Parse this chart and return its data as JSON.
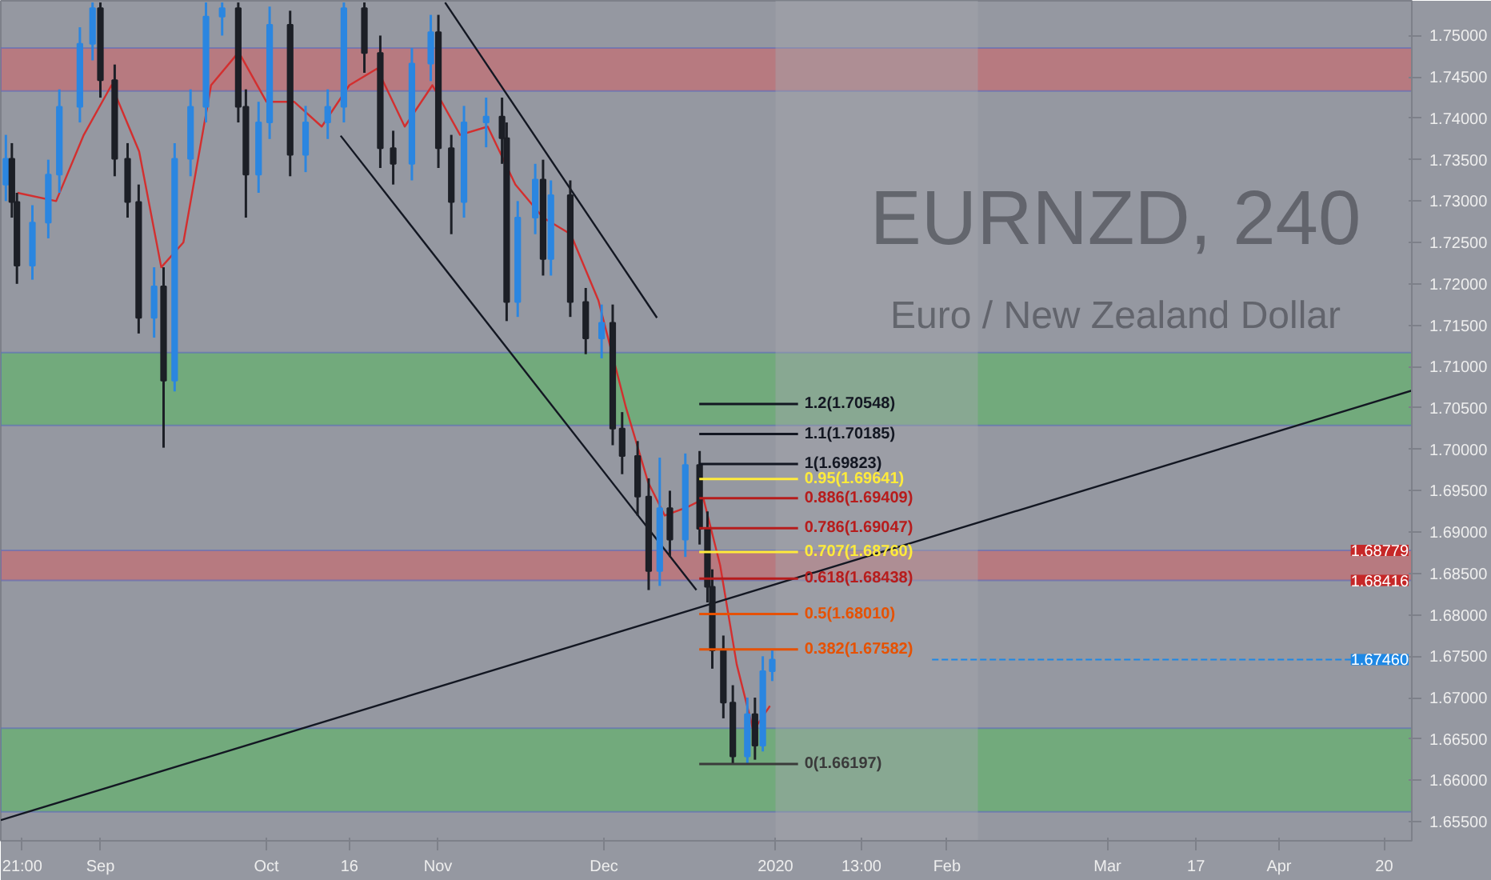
{
  "chart_data": {
    "type": "candlestick",
    "title": "EURNZD, 240",
    "subtitle": "Euro / New Zealand Dollar",
    "xlim": [
      "2019-08-14",
      "2020-04-25"
    ],
    "ylim": [
      1.6527,
      1.7542
    ],
    "xticks": [
      {
        "value": "2019-08-17T21:00",
        "label": "21:00"
      },
      {
        "value": "2019-09-01",
        "label": "Sep"
      },
      {
        "value": "2019-10-01",
        "label": "Oct"
      },
      {
        "value": "2019-10-16",
        "label": "16"
      },
      {
        "value": "2019-11-01",
        "label": "Nov"
      },
      {
        "value": "2019-12-01",
        "label": "Dec"
      },
      {
        "value": "2020-01-01",
        "label": "2020"
      },
      {
        "value": "2020-01-16T13:00",
        "label": "13:00"
      },
      {
        "value": "2020-02-01",
        "label": "Feb"
      },
      {
        "value": "2020-03-01",
        "label": "Mar"
      },
      {
        "value": "2020-03-17",
        "label": "17"
      },
      {
        "value": "2020-04-01",
        "label": "Apr"
      },
      {
        "value": "2020-04-20",
        "label": "20"
      }
    ],
    "yticks": [
      {
        "value": 1.655,
        "label": "1.65500"
      },
      {
        "value": 1.66,
        "label": "1.66000"
      },
      {
        "value": 1.665,
        "label": "1.66500"
      },
      {
        "value": 1.67,
        "label": "1.67000"
      },
      {
        "value": 1.675,
        "label": "1.67500"
      },
      {
        "value": 1.68,
        "label": "1.68000"
      },
      {
        "value": 1.685,
        "label": "1.68500"
      },
      {
        "value": 1.69,
        "label": "1.69000"
      },
      {
        "value": 1.695,
        "label": "1.69500"
      },
      {
        "value": 1.7,
        "label": "1.70000"
      },
      {
        "value": 1.705,
        "label": "1.70500"
      },
      {
        "value": 1.71,
        "label": "1.71000"
      },
      {
        "value": 1.715,
        "label": "1.71500"
      },
      {
        "value": 1.72,
        "label": "1.72000"
      },
      {
        "value": 1.725,
        "label": "1.72500"
      },
      {
        "value": 1.73,
        "label": "1.73000"
      },
      {
        "value": 1.735,
        "label": "1.73500"
      },
      {
        "value": 1.74,
        "label": "1.74000"
      },
      {
        "value": 1.745,
        "label": "1.74500"
      },
      {
        "value": 1.75,
        "label": "1.75000"
      }
    ],
    "grid": false,
    "annotations": [
      {
        "text": "1.68779",
        "y": 1.68779
      },
      {
        "text": "1.68416",
        "y": 1.68416
      }
    ],
    "series": [
      {
        "colors": [
          "#2b86e0",
          "#1c1f26",
          "#1c1f26",
          "#2b86e0",
          "#2b86e0",
          "#2b86e0",
          "#2b86e0",
          "#2b86e0",
          "#1c1f26",
          "#1c1f26",
          "#1c1f26",
          "#1c1f26",
          "#2b86e0",
          "#1c1f26",
          "#2b86e0",
          "#2b86e0",
          "#2b86e0",
          "#2b86e0",
          "#1c1f26",
          "#1c1f26",
          "#2b86e0",
          "#2b86e0",
          "#1c1f26",
          "#2b86e0",
          "#2b86e0",
          "#2b86e0",
          "#1c1f26",
          "#1c1f26",
          "#1c1f26",
          "#2b86e0",
          "#2b86e0",
          "#1c1f26",
          "#1c1f26",
          "#2b86e0",
          "#2b86e0",
          "#1c1f26",
          "#1c1f26",
          "#2b86e0",
          "#2b86e0",
          "#1c1f26",
          "#2b86e0",
          "#1c1f26",
          "#1c1f26",
          "#2b86e0",
          "#1c1f26",
          "#1c1f26",
          "#1c1f26",
          "#1c1f26",
          "#2b86e0",
          "#1c1f26",
          "#2b86e0",
          "#1c1f26",
          "#1c1f26",
          "#1c1f26",
          "#1c1f26",
          "#1c1f26",
          "#2b86e0",
          "#1c1f26",
          "#2b86e0",
          "#2b86e0"
        ],
        "x": [
          "2019-08-14T22:00",
          "2019-08-16T00:00",
          "2019-08-16T22:00",
          "2019-08-19T17:00",
          "2019-08-22T14:00",
          "2019-08-24T14:00",
          "2019-08-28T07:00",
          "2019-08-30T14:00",
          "2019-09-01T00:00",
          "2019-09-03T14:00",
          "2019-09-05T22:00",
          "2019-09-07T22:00",
          "2019-09-10T17:00",
          "2019-09-12T10:00",
          "2019-09-14T10:00",
          "2019-09-17T07:00",
          "2019-09-20T02:00",
          "2019-09-23T00:00",
          "2019-09-25T22:00",
          "2019-09-27T07:00",
          "2019-09-29T14:00",
          "2019-10-01T14:00",
          "2019-10-05T07:00",
          "2019-10-08T02:00",
          "2019-10-12T02:00",
          "2019-10-15T00:00",
          "2019-10-18T17:00",
          "2019-10-21T14:00",
          "2019-10-23T22:00",
          "2019-10-27T07:00",
          "2019-10-30T17:00",
          "2019-11-01T02:00",
          "2019-11-03T10:00",
          "2019-11-05T17:00",
          "2019-11-09T17:00",
          "2019-11-12T14:00",
          "2019-11-13T10:00",
          "2019-11-15T10:00",
          "2019-11-18T14:00",
          "2019-11-20T00:00",
          "2019-11-21T10:00",
          "2019-11-24T22:00",
          "2019-11-27T17:00",
          "2019-11-30T14:00",
          "2019-12-02T14:00",
          "2019-12-04T07:00",
          "2019-12-07T02:00",
          "2019-12-09T02:00",
          "2019-12-11T02:00",
          "2019-12-12T22:00",
          "2019-12-15T17:00",
          "2019-12-18T07:00",
          "2019-12-19T17:00",
          "2019-12-20T14:00",
          "2019-12-22T14:00",
          "2019-12-24T07:00",
          "2019-12-26T22:00",
          "2019-12-28T07:00",
          "2019-12-29T17:00",
          "2019-12-31T10:00"
        ],
        "ohlc": [
          [
            1.732,
            1.738,
            1.73,
            1.7351
          ],
          [
            1.7351,
            1.737,
            1.728,
            1.7299
          ],
          [
            1.7299,
            1.731,
            1.72,
            1.7222
          ],
          [
            1.7222,
            1.7295,
            1.7205,
            1.7274
          ],
          [
            1.7274,
            1.735,
            1.7255,
            1.7332
          ],
          [
            1.7332,
            1.7435,
            1.731,
            1.7414
          ],
          [
            1.7414,
            1.751,
            1.7395,
            1.749
          ],
          [
            1.749,
            1.754,
            1.747,
            1.7533
          ],
          [
            1.7533,
            1.754,
            1.7425,
            1.7446
          ],
          [
            1.7446,
            1.7465,
            1.733,
            1.7351
          ],
          [
            1.7351,
            1.737,
            1.728,
            1.7299
          ],
          [
            1.7299,
            1.732,
            1.714,
            1.7159
          ],
          [
            1.7159,
            1.722,
            1.7135,
            1.7197
          ],
          [
            1.7197,
            1.722,
            1.7002,
            1.7083
          ],
          [
            1.7083,
            1.737,
            1.707,
            1.7351
          ],
          [
            1.7351,
            1.7435,
            1.733,
            1.7414
          ],
          [
            1.7414,
            1.754,
            1.7395,
            1.7523
          ],
          [
            1.7523,
            1.754,
            1.75,
            1.7533
          ],
          [
            1.7533,
            1.754,
            1.7395,
            1.7414
          ],
          [
            1.7414,
            1.7435,
            1.728,
            1.7332
          ],
          [
            1.7332,
            1.742,
            1.731,
            1.7395
          ],
          [
            1.7395,
            1.7535,
            1.7375,
            1.7513
          ],
          [
            1.7513,
            1.753,
            1.733,
            1.7356
          ],
          [
            1.7356,
            1.7415,
            1.7335,
            1.7395
          ],
          [
            1.7395,
            1.7435,
            1.7375,
            1.7414
          ],
          [
            1.7414,
            1.754,
            1.7395,
            1.7533
          ],
          [
            1.7533,
            1.754,
            1.7455,
            1.7479
          ],
          [
            1.7479,
            1.75,
            1.734,
            1.7364
          ],
          [
            1.7364,
            1.7385,
            1.732,
            1.7345
          ],
          [
            1.7345,
            1.7485,
            1.7325,
            1.7466
          ],
          [
            1.7466,
            1.7525,
            1.7445,
            1.7504
          ],
          [
            1.7504,
            1.7525,
            1.734,
            1.7364
          ],
          [
            1.7364,
            1.738,
            1.726,
            1.7299
          ],
          [
            1.7299,
            1.7415,
            1.728,
            1.7395
          ],
          [
            1.7395,
            1.7425,
            1.7365,
            1.7402
          ],
          [
            1.7402,
            1.7425,
            1.7345,
            1.7376
          ],
          [
            1.7376,
            1.7395,
            1.7155,
            1.7178
          ],
          [
            1.7178,
            1.73,
            1.716,
            1.728
          ],
          [
            1.728,
            1.7345,
            1.726,
            1.7326
          ],
          [
            1.7326,
            1.735,
            1.721,
            1.723
          ],
          [
            1.723,
            1.7325,
            1.721,
            1.7307
          ],
          [
            1.7307,
            1.7325,
            1.716,
            1.7178
          ],
          [
            1.7178,
            1.7195,
            1.7115,
            1.7134
          ],
          [
            1.7134,
            1.7175,
            1.711,
            1.7153
          ],
          [
            1.7153,
            1.7175,
            1.7005,
            1.7025
          ],
          [
            1.7025,
            1.7045,
            1.697,
            1.6992
          ],
          [
            1.6992,
            1.701,
            1.692,
            1.6943
          ],
          [
            1.6943,
            1.6965,
            1.683,
            1.6853
          ],
          [
            1.6853,
            1.699,
            1.6835,
            1.6929
          ],
          [
            1.6929,
            1.695,
            1.687,
            1.6891
          ],
          [
            1.6891,
            1.6995,
            1.687,
            1.6981
          ],
          [
            1.6981,
            1.6998,
            1.6885,
            1.6904
          ],
          [
            1.6904,
            1.6925,
            1.6815,
            1.6834
          ],
          [
            1.6834,
            1.6855,
            1.6735,
            1.6757
          ],
          [
            1.6757,
            1.6775,
            1.6675,
            1.6694
          ],
          [
            1.6694,
            1.6715,
            1.662,
            1.6629
          ],
          [
            1.6629,
            1.67,
            1.662,
            1.668
          ],
          [
            1.668,
            1.67,
            1.6625,
            1.6642
          ],
          [
            1.6642,
            1.675,
            1.6635,
            1.6732
          ],
          [
            1.6732,
            1.6758,
            1.672,
            1.6746
          ]
        ]
      },
      {
        "type": "line",
        "color": "#d32f2f",
        "x": [
          "2019-08-17",
          "2019-08-24",
          "2019-08-29",
          "2019-09-03",
          "2019-09-08",
          "2019-09-12",
          "2019-09-16",
          "2019-09-21",
          "2019-09-26",
          "2019-10-01",
          "2019-10-06",
          "2019-10-11",
          "2019-10-16",
          "2019-10-21",
          "2019-10-26",
          "2019-10-31",
          "2019-11-05",
          "2019-11-10",
          "2019-11-15",
          "2019-11-20",
          "2019-11-25",
          "2019-11-30",
          "2019-12-05",
          "2019-12-09",
          "2019-12-12",
          "2019-12-16",
          "2019-12-19",
          "2019-12-22",
          "2019-12-25",
          "2019-12-28",
          "2019-12-31"
        ],
        "values": [
          1.731,
          1.73,
          1.738,
          1.744,
          1.736,
          1.722,
          1.725,
          1.744,
          1.748,
          1.742,
          1.742,
          1.739,
          1.744,
          1.746,
          1.739,
          1.744,
          1.738,
          1.739,
          1.732,
          1.728,
          1.726,
          1.718,
          1.705,
          1.696,
          1.692,
          1.693,
          1.694,
          1.686,
          1.674,
          1.666,
          1.669
        ]
      },
      {
        "type": "line",
        "color": "#131722",
        "x": [
          "2019-11-02T07:00",
          "2019-12-10T14:00"
        ],
        "values": [
          1.754,
          1.7159
        ]
      },
      {
        "type": "line",
        "color": "#131722",
        "x": [
          "2019-10-14T10:00",
          "2019-12-17T17:00"
        ],
        "values": [
          1.7379,
          1.683
        ]
      },
      {
        "type": "line",
        "color": "#131722",
        "x": [
          "2019-08-14",
          "2020-04-25"
        ],
        "values": [
          1.6552,
          1.7071
        ]
      }
    ],
    "bands": [
      {
        "axis": "y",
        "from": 1.7433,
        "to": 1.7485,
        "color": "#c96a6e"
      },
      {
        "axis": "y",
        "from": 1.7029,
        "to": 1.7117,
        "color": "#5fb468"
      },
      {
        "axis": "y",
        "from": 1.6562,
        "to": 1.6663,
        "color": "#5fb468"
      },
      {
        "axis": "y",
        "from": 1.68416,
        "to": 1.68779,
        "color": "#c96a6e"
      },
      {
        "axis": "x",
        "from": "2020-01-01",
        "to": "2020-02-06T14:00",
        "color": "#a3a6ae"
      }
    ],
    "ref_lines": [
      {
        "axis": "y",
        "value": 1.70548,
        "label": "1.2(1.70548)",
        "color": "#131722",
        "line_style": "solid"
      },
      {
        "axis": "y",
        "value": 1.70185,
        "label": "1.1(1.70185)",
        "color": "#131722",
        "line_style": "solid"
      },
      {
        "axis": "y",
        "value": 1.69823,
        "label": "1(1.69823)",
        "color": "#131722",
        "line_style": "solid"
      },
      {
        "axis": "y",
        "value": 1.69641,
        "label": "0.95(1.69641)",
        "color": "#ffeb3b",
        "line_style": "solid"
      },
      {
        "axis": "y",
        "value": 1.69409,
        "label": "0.886(1.69409)",
        "color": "#b71c1c",
        "line_style": "solid"
      },
      {
        "axis": "y",
        "value": 1.69047,
        "label": "0.786(1.69047)",
        "color": "#b71c1c",
        "line_style": "solid"
      },
      {
        "axis": "y",
        "value": 1.6876,
        "label": "0.707(1.68760)",
        "color": "#ffeb3b",
        "line_style": "solid"
      },
      {
        "axis": "y",
        "value": 1.68438,
        "label": "0.618(1.68438)",
        "color": "#b71c1c",
        "line_style": "solid"
      },
      {
        "axis": "y",
        "value": 1.6801,
        "label": "0.5(1.68010)",
        "color": "#e65100",
        "line_style": "solid"
      },
      {
        "axis": "y",
        "value": 1.67582,
        "label": "0.382(1.67582)",
        "color": "#e65100",
        "line_style": "solid"
      },
      {
        "axis": "y",
        "value": 1.66197,
        "label": "0(1.66197)",
        "color": "#3a3a3a",
        "line_style": "solid"
      },
      {
        "axis": "y",
        "value": 1.6746,
        "label": "1.67460",
        "color": "#1e88e5",
        "line_style": "dashed"
      }
    ]
  }
}
